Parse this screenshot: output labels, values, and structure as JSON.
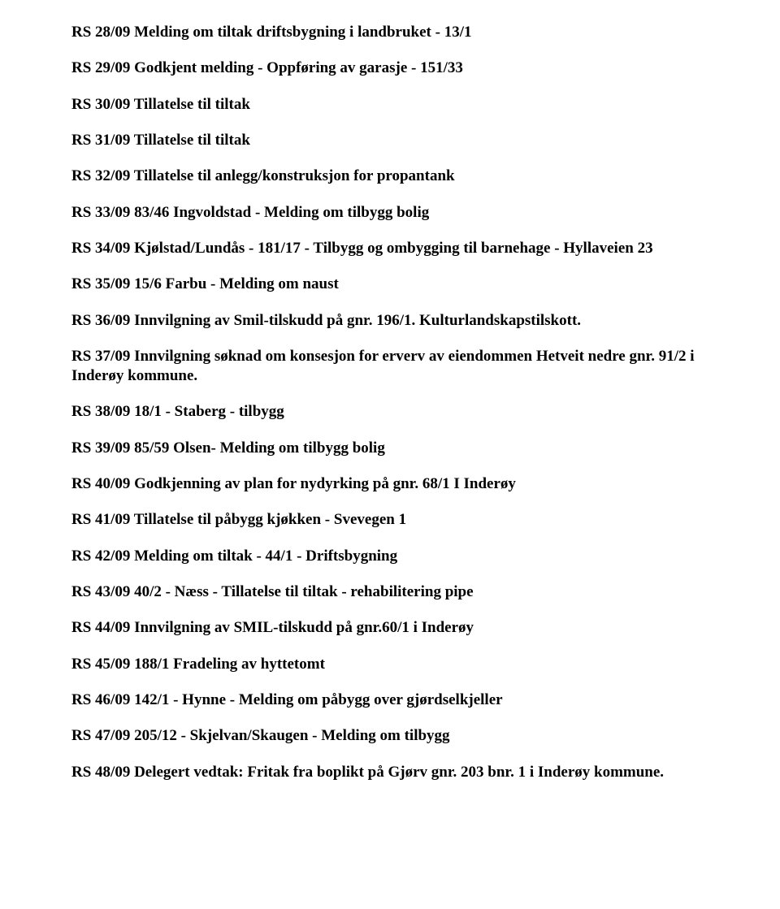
{
  "items": [
    "RS 28/09 Melding om tiltak driftsbygning i landbruket - 13/1",
    "RS 29/09 Godkjent melding - Oppføring av garasje - 151/33",
    "RS 30/09 Tillatelse til tiltak",
    "RS 31/09 Tillatelse til tiltak",
    "RS 32/09 Tillatelse til anlegg/konstruksjon for propantank",
    "RS 33/09 83/46 Ingvoldstad - Melding om tilbygg bolig",
    "RS 34/09 Kjølstad/Lundås - 181/17 - Tilbygg og ombygging til barnehage - Hyllaveien 23",
    "RS 35/09 15/6 Farbu - Melding om naust",
    "RS 36/09 Innvilgning av Smil-tilskudd på gnr. 196/1. Kulturlandskapstilskott.",
    "RS 37/09 Innvilgning søknad om konsesjon for erverv av eiendommen Hetveit nedre gnr. 91/2 i Inderøy kommune.",
    "RS 38/09 18/1 - Staberg - tilbygg",
    "RS 39/09 85/59 Olsen- Melding om tilbygg bolig",
    "RS 40/09 Godkjenning av plan for nydyrking på gnr. 68/1 I Inderøy",
    "RS 41/09 Tillatelse til påbygg kjøkken - Svevegen 1",
    "RS 42/09 Melding om tiltak - 44/1 - Driftsbygning",
    "RS 43/09 40/2 - Næss - Tillatelse til tiltak - rehabilitering pipe",
    "RS 44/09 Innvilgning av SMIL-tilskudd på gnr.60/1 i Inderøy",
    "RS 45/09 188/1 Fradeling av hyttetomt",
    "RS 46/09 142/1 - Hynne - Melding om påbygg over gjørdselkjeller",
    "RS 47/09 205/12 - Skjelvan/Skaugen - Melding om tilbygg",
    "RS 48/09 Delegert vedtak: Fritak fra boplikt på Gjørv gnr. 203 bnr. 1 i Inderøy kommune."
  ]
}
